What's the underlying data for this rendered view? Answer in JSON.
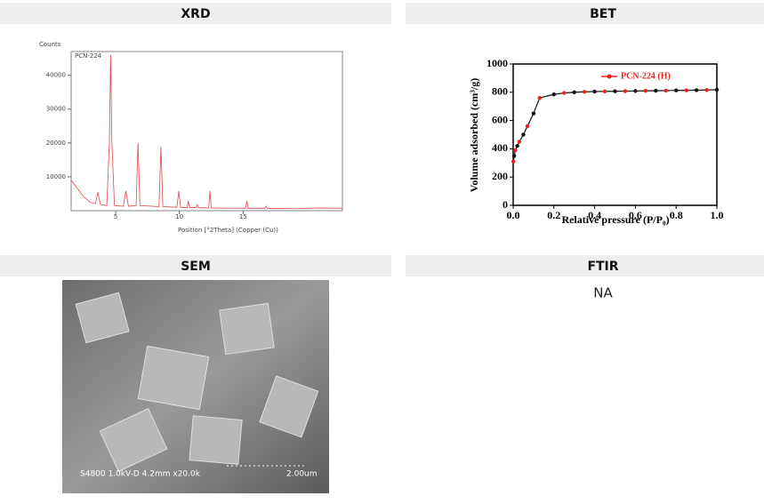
{
  "panel_titles": [
    "XRD",
    "BET",
    "SEM",
    "FTIR"
  ],
  "chart_data": [
    {
      "type": "line",
      "y_label": "Counts",
      "x_label": "Position [°2Theta] (Copper (Cu))",
      "legend": "PCN-224",
      "color": "#e0474c",
      "x": [
        1.5,
        2.0,
        2.5,
        3.0,
        3.4,
        3.6,
        3.8,
        4.3,
        4.5,
        4.6,
        4.7,
        4.9,
        5.6,
        5.8,
        6.0,
        6.6,
        6.75,
        6.9,
        8.4,
        8.55,
        8.7,
        9.8,
        9.95,
        10.1,
        10.6,
        10.7,
        10.8,
        11.3,
        11.4,
        11.5,
        12.3,
        12.4,
        12.5,
        15.2,
        15.3,
        15.4,
        16.7,
        16.8,
        16.9,
        19,
        21,
        22.8
      ],
      "values": [
        9000,
        6500,
        4000,
        2500,
        2000,
        5500,
        1800,
        1500,
        20000,
        46000,
        20000,
        1500,
        1300,
        5800,
        1300,
        1500,
        20000,
        1500,
        1200,
        19000,
        1200,
        1000,
        5800,
        1000,
        900,
        2900,
        900,
        900,
        1800,
        900,
        800,
        5800,
        800,
        700,
        2900,
        700,
        700,
        1300,
        700,
        600,
        800,
        700
      ],
      "xlim": [
        1.5,
        22.8
      ],
      "xticks": [
        5,
        10,
        15
      ],
      "ylim": [
        0,
        47000
      ],
      "yticks": [
        10000,
        20000,
        30000,
        40000
      ]
    },
    {
      "type": "line",
      "y_label": "Volume adsorbed (cm³/g)",
      "x_label": "Relative pressure (P/P₀)",
      "series": [
        {
          "name": "PCN-224 (H)",
          "color": "#e8231f",
          "line_color": "#222222",
          "x": [
            0.001,
            0.005,
            0.01,
            0.02,
            0.03,
            0.05,
            0.07,
            0.1,
            0.13,
            0.2,
            0.25,
            0.3,
            0.35,
            0.4,
            0.45,
            0.5,
            0.55,
            0.6,
            0.65,
            0.7,
            0.75,
            0.8,
            0.85,
            0.9,
            0.95,
            1.0
          ],
          "values": [
            310,
            350,
            390,
            420,
            450,
            500,
            560,
            650,
            760,
            785,
            795,
            800,
            803,
            805,
            806,
            807,
            808,
            809,
            810,
            811,
            812,
            813,
            814,
            815,
            816,
            818
          ]
        }
      ],
      "xlim": [
        0,
        1
      ],
      "xticks": [
        {
          "value": 0,
          "label": "0.0"
        },
        0.2,
        0.4,
        0.6,
        0.8,
        {
          "value": 1,
          "label": "1.0"
        }
      ],
      "ylim": [
        0,
        1000
      ],
      "yticks": [
        0,
        200,
        400,
        600,
        800,
        1000
      ]
    }
  ],
  "sem": {
    "caption": "S4800 1.0kV-D 4.2mm x20.0k",
    "scale": "2.00um"
  },
  "ftir": {
    "text": "NA"
  }
}
